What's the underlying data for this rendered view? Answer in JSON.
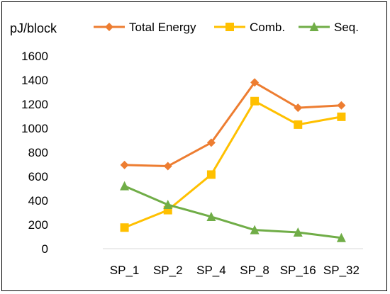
{
  "chart_data": {
    "type": "line",
    "ylabel": "pJ/block",
    "categories": [
      "SP_1",
      "SP_2",
      "SP_4",
      "SP_8",
      "SP_16",
      "SP_32"
    ],
    "ylim": [
      0,
      1600
    ],
    "yticks": [
      0,
      200,
      400,
      600,
      800,
      1000,
      1200,
      1400,
      1600
    ],
    "grid": false,
    "legend_position": "top",
    "series": [
      {
        "name": "Total Energy",
        "values": [
          695,
          685,
          880,
          1380,
          1170,
          1190
        ],
        "color": "#ED7D31",
        "marker": "diamond"
      },
      {
        "name": "Comb.",
        "values": [
          175,
          320,
          615,
          1225,
          1030,
          1095
        ],
        "color": "#FFC000",
        "marker": "square"
      },
      {
        "name": "Seq.",
        "values": [
          520,
          365,
          265,
          155,
          135,
          90
        ],
        "color": "#70AD47",
        "marker": "triangle"
      }
    ]
  }
}
